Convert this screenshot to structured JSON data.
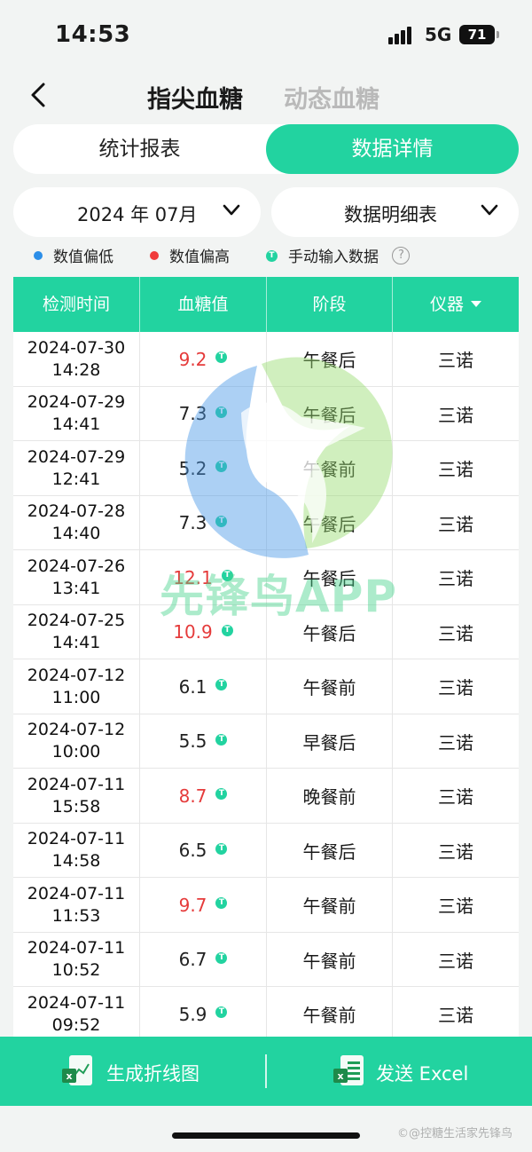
{
  "status_bar": {
    "time": "14:53",
    "network": "5G",
    "battery": "71"
  },
  "header": {
    "tab_active": "指尖血糖",
    "tab_inactive": "动态血糖"
  },
  "segment": {
    "left_label": "统计报表",
    "right_label": "数据详情",
    "selected": "数据详情"
  },
  "filters": {
    "month": "2024 年 07月",
    "view": "数据明细表"
  },
  "legend": {
    "low": "数值偏低",
    "high": "数值偏高",
    "manual": "手动输入数据",
    "help": "?"
  },
  "colors": {
    "accent": "#22d3a0",
    "low": "#2b8ee8",
    "high": "#e53b3b"
  },
  "table": {
    "headers": [
      "检测时间",
      "血糖值",
      "阶段",
      "仪器"
    ],
    "rows": [
      {
        "date": "2024-07-30",
        "time": "14:28",
        "value": "9.2",
        "status": "high",
        "phase": "午餐后",
        "device": "三诺"
      },
      {
        "date": "2024-07-29",
        "time": "14:41",
        "value": "7.3",
        "status": "normal",
        "phase": "午餐后",
        "device": "三诺"
      },
      {
        "date": "2024-07-29",
        "time": "12:41",
        "value": "5.2",
        "status": "normal",
        "phase": "午餐前",
        "device": "三诺"
      },
      {
        "date": "2024-07-28",
        "time": "14:40",
        "value": "7.3",
        "status": "normal",
        "phase": "午餐后",
        "device": "三诺"
      },
      {
        "date": "2024-07-26",
        "time": "13:41",
        "value": "12.1",
        "status": "high",
        "phase": "午餐后",
        "device": "三诺"
      },
      {
        "date": "2024-07-25",
        "time": "14:41",
        "value": "10.9",
        "status": "high",
        "phase": "午餐后",
        "device": "三诺"
      },
      {
        "date": "2024-07-12",
        "time": "11:00",
        "value": "6.1",
        "status": "normal",
        "phase": "午餐前",
        "device": "三诺"
      },
      {
        "date": "2024-07-12",
        "time": "10:00",
        "value": "5.5",
        "status": "normal",
        "phase": "早餐后",
        "device": "三诺"
      },
      {
        "date": "2024-07-11",
        "time": "15:58",
        "value": "8.7",
        "status": "high",
        "phase": "晚餐前",
        "device": "三诺"
      },
      {
        "date": "2024-07-11",
        "time": "14:58",
        "value": "6.5",
        "status": "normal",
        "phase": "午餐后",
        "device": "三诺"
      },
      {
        "date": "2024-07-11",
        "time": "11:53",
        "value": "9.7",
        "status": "high",
        "phase": "午餐前",
        "device": "三诺"
      },
      {
        "date": "2024-07-11",
        "time": "10:52",
        "value": "6.7",
        "status": "normal",
        "phase": "午餐前",
        "device": "三诺"
      },
      {
        "date": "2024-07-11",
        "time": "09:52",
        "value": "5.9",
        "status": "normal",
        "phase": "午餐前",
        "device": "三诺"
      }
    ]
  },
  "watermark": {
    "text": "先锋鸟APP"
  },
  "bottom_bar": {
    "chart_label": "生成折线图",
    "excel_label": "发送 Excel"
  },
  "corner_mark": "©@控糖生活家先锋鸟"
}
